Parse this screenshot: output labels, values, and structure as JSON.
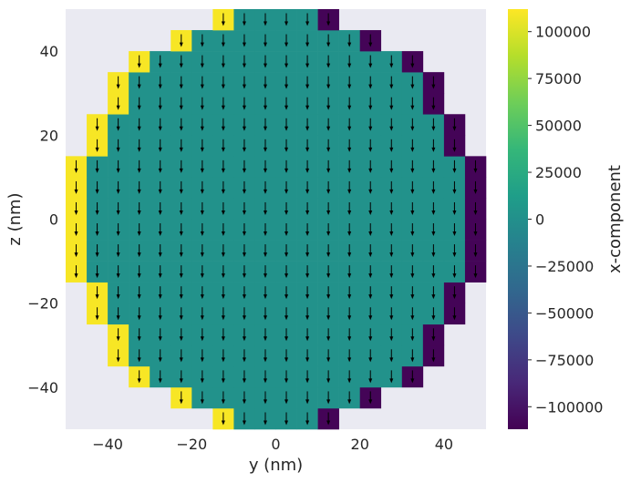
{
  "chart_data": {
    "type": "heatmap",
    "title": "",
    "xlabel": "y (nm)",
    "ylabel": "z (nm)",
    "xlim": [
      -50,
      50
    ],
    "ylim": [
      -50,
      50
    ],
    "xticks": [
      "−40",
      "−20",
      "0",
      "20",
      "40"
    ],
    "xtick_values": [
      -40,
      -20,
      0,
      20,
      40
    ],
    "yticks": [
      "−40",
      "−20",
      "0",
      "20",
      "40"
    ],
    "ytick_values": [
      -40,
      -20,
      0,
      20,
      40
    ],
    "grid": false,
    "cell_size_nm": 5,
    "disk_radius_nm": 50,
    "arrow_direction": "down",
    "colormap": "viridis",
    "background_color": "#eaeaf2",
    "colorbar": {
      "label": "x-component",
      "range": [
        -112000,
        112000
      ],
      "ticks": [
        "−100000",
        "−75000",
        "−50000",
        "−25000",
        "0",
        "25000",
        "50000",
        "75000",
        "100000"
      ],
      "tick_values": [
        -100000,
        -75000,
        -50000,
        -25000,
        0,
        25000,
        50000,
        75000,
        100000
      ]
    },
    "values_description_free": true,
    "interior_value": 2000,
    "edge_left_value": 110000,
    "edge_right_value": -110000
  }
}
